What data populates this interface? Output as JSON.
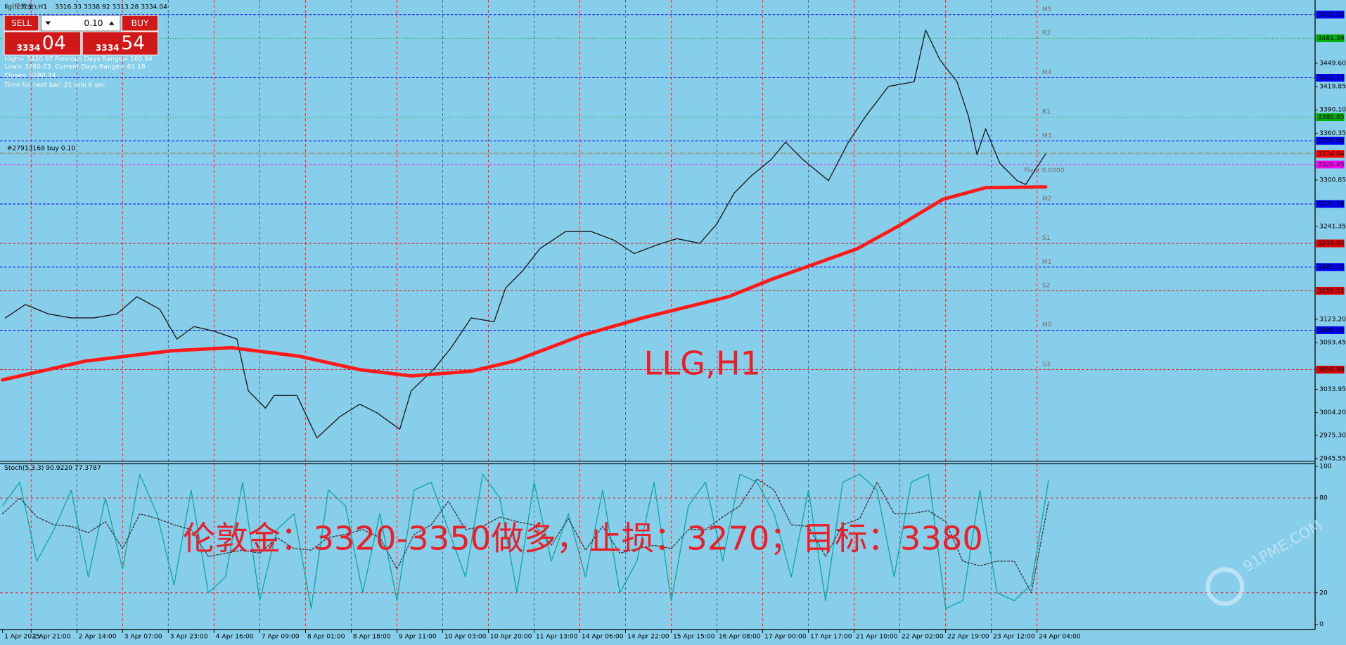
{
  "header": {
    "symbol": "llg(伦敦金),H1",
    "ohlc": "3316.33 3338.92 3313.28 3334.04"
  },
  "trade_panel": {
    "sell": "SELL",
    "buy": "BUY",
    "lot": "0.10",
    "sell_price_small": "3334",
    "sell_price_big": "04",
    "buy_price_small": "3334",
    "buy_price_big": "54"
  },
  "info": {
    "high": "High= 3420.97",
    "prev_range": "Previous Days Range= 160.94",
    "low": "Low= 3260.03",
    "cur_range": "Current Days Range= 61.18",
    "close": "Close= 3280.24",
    "next_bar": "Time for next bar: 21 min 6 sec"
  },
  "watermark": "91PME.COM",
  "chart_data": [
    {
      "type": "line",
      "title": "LLG,H1",
      "xlim": [
        0,
        459
      ],
      "ylim": [
        2943.4,
        3526.9
      ],
      "grid": "x",
      "xticks": [
        {
          "value": 0,
          "label": "1 Apr 2025"
        },
        {
          "value": 10,
          "label": "1 Apr 21:00"
        },
        {
          "value": 26,
          "label": "2 Apr 14:00"
        },
        {
          "value": 42,
          "label": "3 Apr 07:00"
        },
        {
          "value": 58,
          "label": "3 Apr 23:00"
        },
        {
          "value": 74,
          "label": "4 Apr 16:00"
        },
        {
          "value": 90,
          "label": "7 Apr 09:00"
        },
        {
          "value": 106,
          "label": "8 Apr 01:00"
        },
        {
          "value": 122,
          "label": "8 Apr 18:00"
        },
        {
          "value": 138,
          "label": "9 Apr 11:00"
        },
        {
          "value": 154,
          "label": "10 Apr 03:00"
        },
        {
          "value": 170,
          "label": "10 Apr 20:00"
        },
        {
          "value": 186,
          "label": "11 Apr 13:00"
        },
        {
          "value": 202,
          "label": "14 Apr 06:00"
        },
        {
          "value": 218,
          "label": "14 Apr 22:00"
        },
        {
          "value": 234,
          "label": "15 Apr 15:00"
        },
        {
          "value": 250,
          "label": "16 Apr 08:00"
        },
        {
          "value": 266,
          "label": "17 Apr 00:00"
        },
        {
          "value": 282,
          "label": "17 Apr 17:00"
        },
        {
          "value": 298,
          "label": "21 Apr 10:00"
        },
        {
          "value": 314,
          "label": "22 Apr 02:00"
        },
        {
          "value": 330,
          "label": "22 Apr 19:00"
        },
        {
          "value": 346,
          "label": "23 Apr 12:00"
        },
        {
          "value": 362,
          "label": "24 Apr 04:00"
        }
      ],
      "yticks": [
        {
          "value": 3449.6,
          "label": "3449.60"
        },
        3419.85,
        {
          "value": 3390.1,
          "label": "3390.10"
        },
        3360.35,
        3300.85,
        3241.35,
        {
          "value": 3123.2,
          "label": "3123.20"
        },
        3093.45,
        3033.95,
        {
          "value": 3004.2,
          "label": "3004.20"
        },
        {
          "value": 2975.3,
          "label": "2975.30"
        },
        2945.55
      ],
      "series": [
        {
          "color": "#1a1a1a",
          "x": [
            1,
            8,
            16,
            24,
            32,
            40,
            47,
            55,
            61,
            67,
            74,
            82,
            86,
            92,
            95,
            103,
            110,
            118,
            125,
            131,
            139,
            143,
            151,
            157,
            164,
            172,
            176,
            182,
            188,
            197,
            206,
            214,
            221,
            229,
            236,
            244,
            250,
            256,
            262,
            269,
            274,
            280,
            289,
            296,
            302,
            310,
            319,
            323,
            328,
            334,
            338,
            341,
            344,
            349,
            355,
            358,
            365
          ],
          "values": [
            3125,
            3142,
            3130,
            3125,
            3125,
            3130,
            3152,
            3136,
            3098,
            3114,
            3108,
            3098,
            3032,
            3010,
            3026,
            3026,
            2972,
            2999,
            3015,
            3004,
            2983,
            3032,
            3060,
            3087,
            3125,
            3120,
            3163,
            3185,
            3213,
            3235,
            3235,
            3224,
            3207,
            3218,
            3226,
            3220,
            3245,
            3284,
            3306,
            3327,
            3349,
            3327,
            3300,
            3349,
            3382,
            3420,
            3426,
            3492,
            3454,
            3426,
            3382,
            3333,
            3366,
            3322,
            3300,
            3295,
            3334.04
          ]
        },
        {
          "color": "#ff1a1a",
          "x": [
            0,
            29,
            59,
            80,
            104,
            125,
            143,
            164,
            179,
            203,
            224,
            254,
            269,
            299,
            314,
            329,
            344,
            365
          ],
          "values": [
            3046,
            3070,
            3083,
            3087,
            3076,
            3059,
            3051,
            3057,
            3070,
            3103,
            3125,
            3152,
            3174,
            3213,
            3243,
            3276,
            3291,
            3292
          ]
        }
      ],
      "levels": [
        {
          "label": "M5",
          "value": 3511.55,
          "color": "#0000ff"
        },
        {
          "label": "R2",
          "value": 3481.39,
          "color": "#00b000"
        },
        {
          "label": "M4",
          "value": 3431.12,
          "color": "#0000ff"
        },
        {
          "label": "R1",
          "value": 3380.85,
          "color": "#00b000"
        },
        {
          "label": "M3",
          "value": 3350.65,
          "color": "#0000ff"
        },
        {
          "label": "Pivot 0.0000",
          "value": 3320.45,
          "color": "#ff00ff"
        },
        {
          "label": "M2",
          "value": 3270.19,
          "color": "#0000ff"
        },
        {
          "label": "S1",
          "value": 3219.92,
          "color": "#e00000"
        },
        {
          "label": "M1",
          "value": 3189.72,
          "color": "#0000ff"
        },
        {
          "label": "S2",
          "value": 3159.51,
          "color": "#e00000"
        },
        {
          "label": "M0",
          "value": 3109.25,
          "color": "#0000ff"
        },
        {
          "label": "S3",
          "value": 3058.98,
          "color": "#e00000"
        }
      ],
      "bid": {
        "value": 3334.04,
        "color": "#ff0000"
      },
      "order": {
        "label": "#27913168 buy 0.10",
        "value": 3340.8
      }
    },
    {
      "type": "line",
      "title": "Stoch(5,3,3) 90.9220 77.3787",
      "annotation": "伦敦金：3320-3350做多，止损：3270；目标：3380",
      "xlim": [
        0,
        459
      ],
      "ylim": [
        0,
        100
      ],
      "grid": "y",
      "yticks": [
        0,
        20,
        80,
        100
      ],
      "series": [
        {
          "color": "#10a8a0",
          "x": [
            0,
            6,
            12,
            18,
            24,
            30,
            36,
            42,
            48,
            54,
            60,
            66,
            72,
            78,
            84,
            90,
            96,
            102,
            108,
            114,
            120,
            126,
            132,
            138,
            144,
            150,
            156,
            162,
            168,
            174,
            180,
            186,
            192,
            198,
            204,
            210,
            216,
            222,
            228,
            234,
            240,
            246,
            252,
            258,
            264,
            270,
            276,
            282,
            288,
            294,
            300,
            306,
            312,
            318,
            324,
            330,
            336,
            342,
            348,
            354,
            360,
            366
          ],
          "values": [
            75,
            90,
            40,
            60,
            85,
            30,
            80,
            35,
            95,
            70,
            25,
            85,
            20,
            30,
            90,
            15,
            60,
            70,
            10,
            85,
            75,
            20,
            70,
            15,
            85,
            90,
            60,
            30,
            95,
            80,
            20,
            90,
            40,
            70,
            30,
            85,
            20,
            40,
            90,
            15,
            75,
            90,
            40,
            95,
            90,
            70,
            30,
            85,
            15,
            90,
            95,
            85,
            30,
            90,
            95,
            10,
            15,
            85,
            20,
            15,
            25,
            90.922
          ]
        },
        {
          "color": "#3a3a3a",
          "dashed": true,
          "x": [
            0,
            6,
            12,
            18,
            24,
            30,
            36,
            42,
            48,
            54,
            60,
            66,
            72,
            78,
            84,
            90,
            96,
            102,
            108,
            114,
            120,
            126,
            132,
            138,
            144,
            150,
            156,
            162,
            168,
            174,
            180,
            186,
            192,
            198,
            204,
            210,
            216,
            222,
            228,
            234,
            240,
            246,
            252,
            258,
            264,
            270,
            276,
            282,
            288,
            294,
            300,
            306,
            312,
            318,
            324,
            330,
            336,
            342,
            348,
            354,
            360,
            366
          ],
          "values": [
            70,
            80,
            68,
            63,
            62,
            58,
            65,
            48,
            70,
            67,
            63,
            60,
            43,
            45,
            47,
            45,
            55,
            48,
            47,
            55,
            57,
            60,
            55,
            35,
            57,
            63,
            78,
            60,
            62,
            68,
            65,
            63,
            50,
            67,
            47,
            62,
            45,
            48,
            50,
            48,
            60,
            60,
            68,
            75,
            92,
            85,
            63,
            62,
            43,
            63,
            67,
            90,
            70,
            70,
            72,
            65,
            40,
            37,
            40,
            40,
            20,
            77.3787
          ]
        }
      ]
    }
  ]
}
